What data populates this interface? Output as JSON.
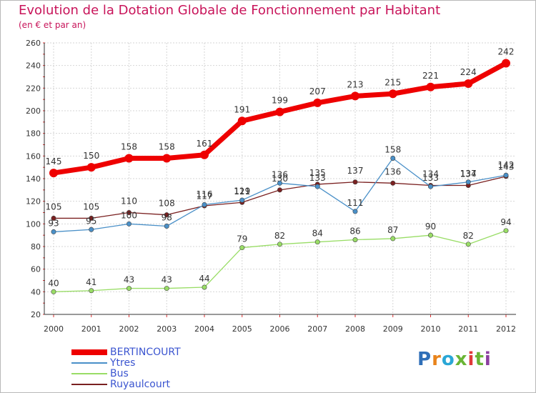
{
  "title": "Evolution de la Dotation Globale de Fonctionnement par Habitant",
  "subtitle": "(en € et par an)",
  "logo": "Proxiti",
  "chart_data": {
    "type": "line",
    "title": "Evolution de la Dotation Globale de Fonctionnement par Habitant",
    "subtitle": "(en € et par an)",
    "xlabel": "",
    "ylabel": "",
    "ylim": [
      20,
      260
    ],
    "yticks": [
      20,
      40,
      60,
      80,
      100,
      120,
      140,
      160,
      180,
      200,
      220,
      240,
      260
    ],
    "grid": true,
    "legend_position": "bottom-left",
    "categories": [
      "2000",
      "2001",
      "2002",
      "2003",
      "2004",
      "2005",
      "2006",
      "2007",
      "2008",
      "2009",
      "2010",
      "2011",
      "2012"
    ],
    "series": [
      {
        "name": "BERTINCOURT",
        "color": "#ee0000",
        "values": [
          145,
          150,
          158,
          158,
          161,
          191,
          199,
          207,
          213,
          215,
          221,
          224,
          242
        ]
      },
      {
        "name": "Ytres",
        "color": "#4a90c8",
        "values": [
          93,
          95,
          100,
          98,
          117,
          121,
          136,
          133,
          111,
          158,
          133,
          137,
          143
        ]
      },
      {
        "name": "Bus",
        "color": "#99dd66",
        "values": [
          40,
          41,
          43,
          43,
          44,
          79,
          82,
          84,
          86,
          87,
          90,
          82,
          94
        ]
      },
      {
        "name": "Ruyaulcourt",
        "color": "#7a2020",
        "values": [
          105,
          105,
          110,
          108,
          116,
          119,
          130,
          135,
          137,
          136,
          134,
          134,
          142
        ]
      }
    ]
  }
}
